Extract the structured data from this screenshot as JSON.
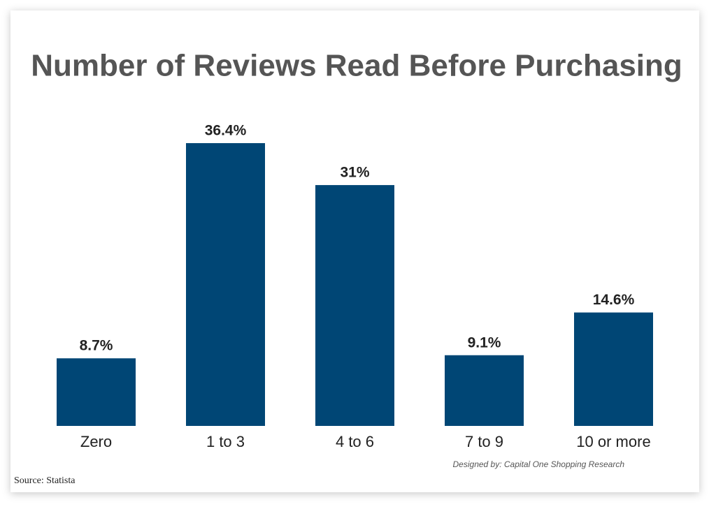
{
  "chart_data": {
    "type": "bar",
    "title": "Number of Reviews Read Before Purchasing",
    "categories": [
      "Zero",
      "1 to 3",
      "4 to 6",
      "7 to 9",
      "10 or more"
    ],
    "values": [
      8.7,
      36.4,
      31,
      9.1,
      14.6
    ],
    "value_labels": [
      "8.7%",
      "36.4%",
      "31%",
      "9.1%",
      "14.6%"
    ],
    "color": "#004675",
    "credit": "Designed by: Capital One Shopping Research",
    "source": "Source: Statista"
  }
}
